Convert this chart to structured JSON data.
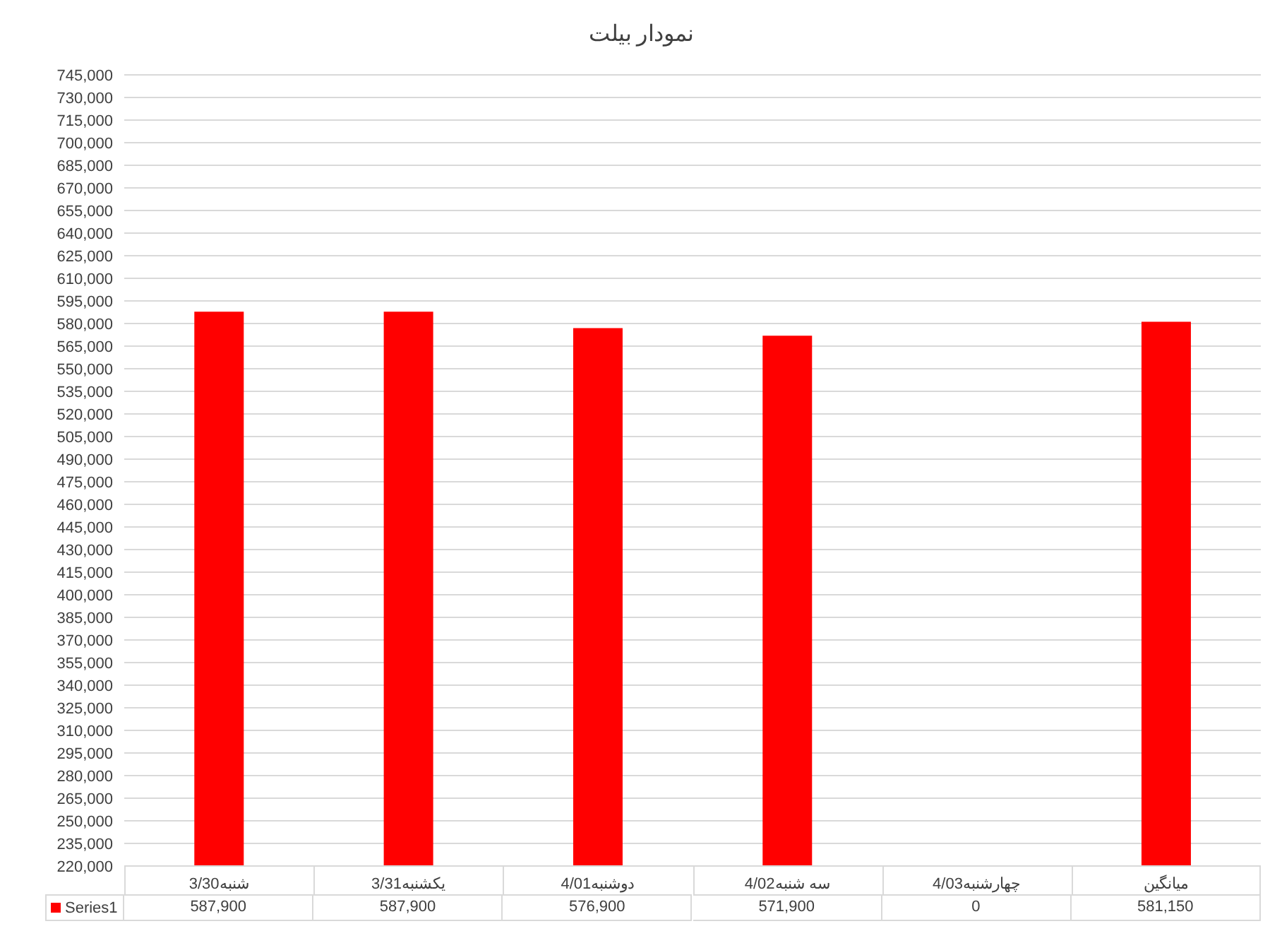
{
  "chart_data": {
    "type": "bar",
    "title": "نمودار بیلت",
    "categories": [
      "شنبه3/30",
      "یکشنبه3/31",
      "دوشنبه4/01",
      "سه شنبه4/02",
      "چهارشنبه4/03",
      "میانگین"
    ],
    "series": [
      {
        "name": "Series1",
        "color": "#ff0000",
        "values": [
          587900,
          587900,
          576900,
          571900,
          null,
          581150
        ],
        "value_labels": [
          "587,900",
          "587,900",
          "576,900",
          "571,900",
          "0",
          "581,150"
        ]
      }
    ],
    "ylim": [
      220000,
      745000
    ],
    "yticks": [
      {
        "value": 220000,
        "label": "220,000"
      },
      {
        "value": 235000,
        "label": "235,000"
      },
      {
        "value": 250000,
        "label": "250,000"
      },
      {
        "value": 265000,
        "label": "265,000"
      },
      {
        "value": 280000,
        "label": "280,000"
      },
      {
        "value": 295000,
        "label": "295,000"
      },
      {
        "value": 310000,
        "label": "310,000"
      },
      {
        "value": 325000,
        "label": "325,000"
      },
      {
        "value": 340000,
        "label": "340,000"
      },
      {
        "value": 355000,
        "label": "355,000"
      },
      {
        "value": 370000,
        "label": "370,000"
      },
      {
        "value": 385000,
        "label": "385,000"
      },
      {
        "value": 400000,
        "label": "400,000"
      },
      {
        "value": 415000,
        "label": "415,000"
      },
      {
        "value": 430000,
        "label": "430,000"
      },
      {
        "value": 445000,
        "label": "445,000"
      },
      {
        "value": 460000,
        "label": "460,000"
      },
      {
        "value": 475000,
        "label": "475,000"
      },
      {
        "value": 490000,
        "label": "490,000"
      },
      {
        "value": 505000,
        "label": "505,000"
      },
      {
        "value": 520000,
        "label": "520,000"
      },
      {
        "value": 535000,
        "label": "535,000"
      },
      {
        "value": 550000,
        "label": "550,000"
      },
      {
        "value": 565000,
        "label": "565,000"
      },
      {
        "value": 580000,
        "label": "580,000"
      },
      {
        "value": 595000,
        "label": "595,000"
      },
      {
        "value": 610000,
        "label": "610,000"
      },
      {
        "value": 625000,
        "label": "625,000"
      },
      {
        "value": 640000,
        "label": "640,000"
      },
      {
        "value": 655000,
        "label": "655,000"
      },
      {
        "value": 670000,
        "label": "670,000"
      },
      {
        "value": 685000,
        "label": "685,000"
      },
      {
        "value": 700000,
        "label": "700,000"
      },
      {
        "value": 715000,
        "label": "715,000"
      },
      {
        "value": 730000,
        "label": "730,000"
      },
      {
        "value": 745000,
        "label": "745,000"
      }
    ],
    "grid": "y",
    "legend": "bottom"
  }
}
